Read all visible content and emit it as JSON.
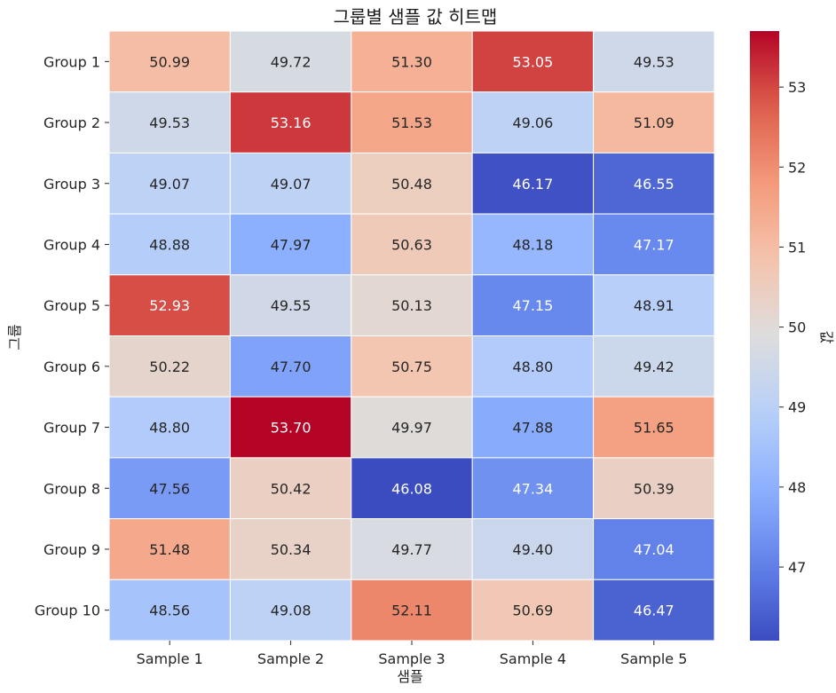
{
  "chart_data": {
    "type": "heatmap",
    "title": "그룹별 샘플 값 히트맵",
    "xlabel": "샘플",
    "ylabel": "그룹",
    "colorbar_label": "값",
    "colormap": "coolwarm",
    "x_categories": [
      "Sample 1",
      "Sample 2",
      "Sample 3",
      "Sample 4",
      "Sample 5"
    ],
    "y_categories": [
      "Group 1",
      "Group 2",
      "Group 3",
      "Group 4",
      "Group 5",
      "Group 6",
      "Group 7",
      "Group 8",
      "Group 9",
      "Group 10"
    ],
    "values": [
      [
        50.99,
        49.72,
        51.3,
        53.05,
        49.53
      ],
      [
        49.53,
        53.16,
        51.53,
        49.06,
        51.09
      ],
      [
        49.07,
        49.07,
        50.48,
        46.17,
        46.55
      ],
      [
        48.88,
        47.97,
        50.63,
        48.18,
        47.17
      ],
      [
        52.93,
        49.55,
        50.13,
        47.15,
        48.91
      ],
      [
        50.22,
        47.7,
        50.75,
        48.8,
        49.42
      ],
      [
        48.8,
        53.7,
        49.97,
        47.88,
        51.65
      ],
      [
        47.56,
        50.42,
        46.08,
        47.34,
        50.39
      ],
      [
        51.48,
        50.34,
        49.77,
        49.4,
        47.04
      ],
      [
        48.56,
        49.08,
        52.11,
        50.69,
        46.47
      ]
    ],
    "value_format": "%.2f",
    "vmin": 46.08,
    "vmax": 53.7,
    "colorbar_ticks": [
      47,
      48,
      49,
      50,
      51,
      52,
      53
    ],
    "annotations": true,
    "grid_lines": "white"
  }
}
